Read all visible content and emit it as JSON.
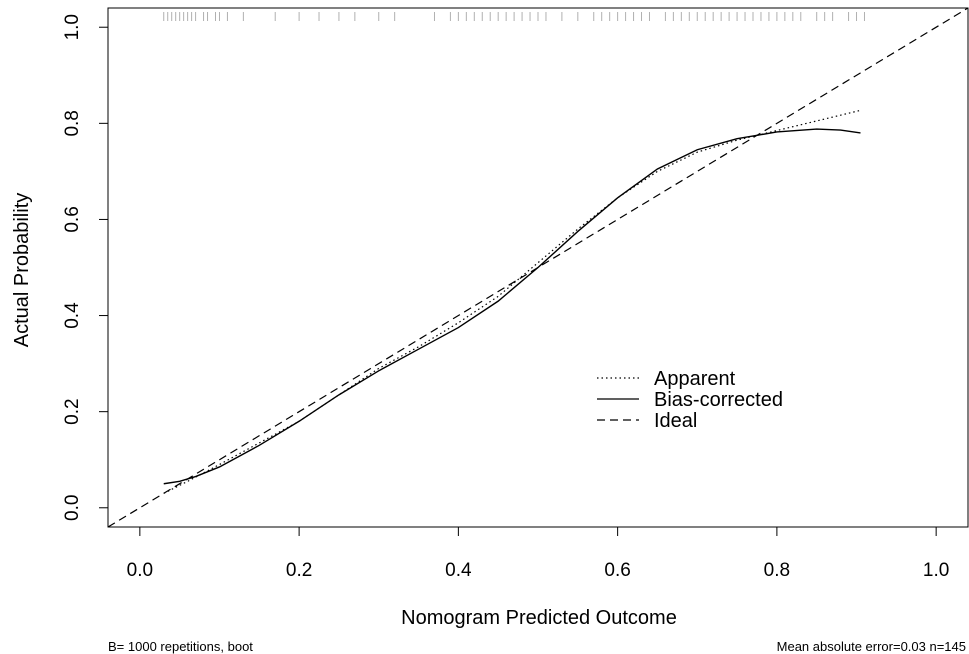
{
  "chart_data": {
    "type": "line",
    "title": "",
    "xlabel": "Nomogram Predicted Outcome",
    "ylabel": "Actual Probability",
    "xlim": [
      -0.04,
      1.04
    ],
    "ylim": [
      -0.04,
      1.04
    ],
    "xticks": [
      "0.0",
      "0.2",
      "0.4",
      "0.6",
      "0.8",
      "1.0"
    ],
    "yticks": [
      "0.0",
      "0.2",
      "0.4",
      "0.6",
      "0.8",
      "1.0"
    ],
    "grid": false,
    "legend_position": "bottom-right",
    "series": [
      {
        "name": "Apparent",
        "style": "dotted",
        "x": [
          0.03,
          0.06,
          0.1,
          0.15,
          0.2,
          0.25,
          0.3,
          0.35,
          0.4,
          0.45,
          0.5,
          0.55,
          0.6,
          0.65,
          0.7,
          0.75,
          0.8,
          0.85,
          0.905
        ],
        "y": [
          0.03,
          0.055,
          0.09,
          0.135,
          0.18,
          0.235,
          0.29,
          0.335,
          0.385,
          0.44,
          0.51,
          0.58,
          0.645,
          0.7,
          0.74,
          0.765,
          0.785,
          0.805,
          0.827
        ]
      },
      {
        "name": "Bias-corrected",
        "style": "solid",
        "x": [
          0.03,
          0.05,
          0.07,
          0.1,
          0.15,
          0.2,
          0.25,
          0.3,
          0.35,
          0.4,
          0.45,
          0.5,
          0.55,
          0.6,
          0.65,
          0.7,
          0.75,
          0.8,
          0.85,
          0.88,
          0.905
        ],
        "y": [
          0.05,
          0.055,
          0.065,
          0.085,
          0.13,
          0.18,
          0.235,
          0.285,
          0.33,
          0.375,
          0.43,
          0.5,
          0.575,
          0.645,
          0.705,
          0.745,
          0.768,
          0.782,
          0.788,
          0.786,
          0.78
        ]
      },
      {
        "name": "Ideal",
        "style": "dashed",
        "x": [
          -0.04,
          1.04
        ],
        "y": [
          -0.04,
          1.04
        ]
      }
    ],
    "rug": [
      0.03,
      0.035,
      0.04,
      0.045,
      0.05,
      0.055,
      0.06,
      0.065,
      0.07,
      0.08,
      0.085,
      0.095,
      0.1,
      0.11,
      0.13,
      0.17,
      0.2,
      0.225,
      0.25,
      0.27,
      0.3,
      0.32,
      0.37,
      0.39,
      0.4,
      0.41,
      0.42,
      0.43,
      0.44,
      0.45,
      0.46,
      0.47,
      0.48,
      0.49,
      0.5,
      0.51,
      0.53,
      0.55,
      0.57,
      0.58,
      0.59,
      0.6,
      0.61,
      0.62,
      0.63,
      0.64,
      0.66,
      0.67,
      0.68,
      0.69,
      0.7,
      0.71,
      0.72,
      0.73,
      0.74,
      0.75,
      0.76,
      0.77,
      0.78,
      0.79,
      0.8,
      0.81,
      0.82,
      0.83,
      0.85,
      0.86,
      0.87,
      0.89,
      0.9,
      0.91
    ]
  },
  "footer": {
    "left": "B= 1000 repetitions, boot",
    "right": "Mean absolute error=0.03 n=145"
  }
}
